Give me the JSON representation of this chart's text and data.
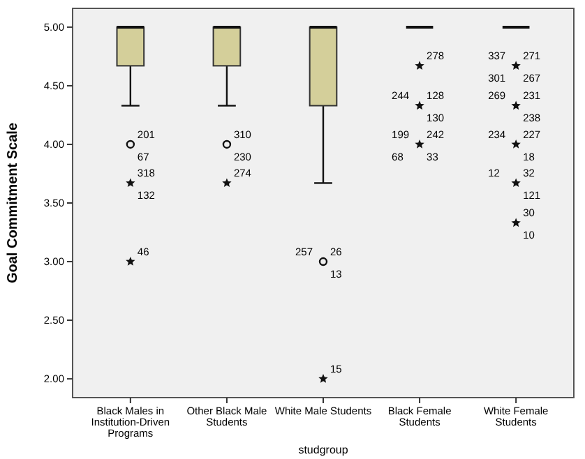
{
  "chart_data": {
    "type": "box",
    "xlabel": "studgroup",
    "ylabel": "Goal Commitment Scale",
    "categories": [
      "Black Males in Institution-Driven Programs",
      "Other Black Male Students",
      "White Male Students",
      "Black Female Students",
      "White Female Students"
    ],
    "colors": [
      "#d4cf9a",
      "#d4cf9a",
      "#d4cf9a",
      "#111111",
      "#111111"
    ],
    "ylim": [
      1.84,
      5.16
    ],
    "yticks": [
      {
        "value": 2,
        "label": "2.00"
      },
      {
        "value": 2.5,
        "label": "2.50"
      },
      {
        "value": 3,
        "label": "3.00"
      },
      {
        "value": 3.5,
        "label": "3.50"
      },
      {
        "value": 4,
        "label": "4.00"
      },
      {
        "value": 4.5,
        "label": "4.50"
      },
      {
        "value": 5,
        "label": "5.00"
      }
    ],
    "boxes": [
      {
        "low": 4.33,
        "q1": 4.67,
        "median": 5,
        "q3": 5,
        "high": 5
      },
      {
        "low": 4.33,
        "q1": 4.67,
        "median": 5,
        "q3": 5,
        "high": 5
      },
      {
        "low": 3.67,
        "q1": 4.33,
        "median": 5,
        "q3": 5,
        "high": 5
      },
      {
        "low": 5,
        "q1": 5,
        "median": 5,
        "q3": 5,
        "high": 5
      },
      {
        "low": 5,
        "q1": 5,
        "median": 5,
        "q3": 5,
        "high": 5
      }
    ],
    "series": [
      {
        "type": "scatter",
        "marker": "circle",
        "color": "#111111",
        "x": [
          "Black Males in Institution-Driven Programs",
          "Other Black Male Students",
          "White Male Students"
        ],
        "values": [
          4,
          4,
          3
        ]
      },
      {
        "type": "scatter",
        "marker": "star",
        "color": "#111111",
        "x": [
          "Black Males in Institution-Driven Programs",
          "Black Males in Institution-Driven Programs",
          "Other Black Male Students",
          "White Male Students",
          "Black Female Students",
          "Black Female Students",
          "Black Female Students",
          "White Female Students",
          "White Female Students",
          "White Female Students",
          "White Female Students",
          "White Female Students"
        ],
        "values": [
          3.67,
          3,
          3.67,
          2,
          4.67,
          4.33,
          4,
          4.67,
          4.33,
          4,
          3.67,
          3.33
        ]
      }
    ],
    "annotations": [
      {
        "text": "201",
        "x": "Black Males in Institution-Driven Programs",
        "y": 4
      },
      {
        "text": "67",
        "x": "Black Males in Institution-Driven Programs",
        "y": 4
      },
      {
        "text": "318",
        "x": "Black Males in Institution-Driven Programs",
        "y": 3.67
      },
      {
        "text": "132",
        "x": "Black Males in Institution-Driven Programs",
        "y": 3.67
      },
      {
        "text": "46",
        "x": "Black Males in Institution-Driven Programs",
        "y": 3
      },
      {
        "text": "310",
        "x": "Other Black Male Students",
        "y": 4
      },
      {
        "text": "230",
        "x": "Other Black Male Students",
        "y": 4
      },
      {
        "text": "274",
        "x": "Other Black Male Students",
        "y": 3.67
      },
      {
        "text": "26",
        "x": "White Male Students",
        "y": 3
      },
      {
        "text": "13",
        "x": "White Male Students",
        "y": 3
      },
      {
        "text": "257",
        "x": "White Male Students",
        "y": 3
      },
      {
        "text": "15",
        "x": "White Male Students",
        "y": 2
      },
      {
        "text": "278",
        "x": "Black Female Students",
        "y": 4.67
      },
      {
        "text": "128",
        "x": "Black Female Students",
        "y": 4.33
      },
      {
        "text": "130",
        "x": "Black Female Students",
        "y": 4.33
      },
      {
        "text": "244",
        "x": "Black Female Students",
        "y": 4.33
      },
      {
        "text": "242",
        "x": "Black Female Students",
        "y": 4
      },
      {
        "text": "33",
        "x": "Black Female Students",
        "y": 4
      },
      {
        "text": "199",
        "x": "Black Female Students",
        "y": 4
      },
      {
        "text": "68",
        "x": "Black Female Students",
        "y": 4
      },
      {
        "text": "271",
        "x": "White Female Students",
        "y": 4.67
      },
      {
        "text": "267",
        "x": "White Female Students",
        "y": 4.67
      },
      {
        "text": "337",
        "x": "White Female Students",
        "y": 4.67
      },
      {
        "text": "301",
        "x": "White Female Students",
        "y": 4.67
      },
      {
        "text": "231",
        "x": "White Female Students",
        "y": 4.33
      },
      {
        "text": "238",
        "x": "White Female Students",
        "y": 4.33
      },
      {
        "text": "269",
        "x": "White Female Students",
        "y": 4.33
      },
      {
        "text": "227",
        "x": "White Female Students",
        "y": 4
      },
      {
        "text": "18",
        "x": "White Female Students",
        "y": 4
      },
      {
        "text": "234",
        "x": "White Female Students",
        "y": 4
      },
      {
        "text": "32",
        "x": "White Female Students",
        "y": 3.67
      },
      {
        "text": "121",
        "x": "White Female Students",
        "y": 3.67
      },
      {
        "text": "12",
        "x": "White Female Students",
        "y": 3.67
      },
      {
        "text": "30",
        "x": "White Female Students",
        "y": 3.33
      },
      {
        "text": "10",
        "x": "White Female Students",
        "y": 3.33
      }
    ]
  }
}
